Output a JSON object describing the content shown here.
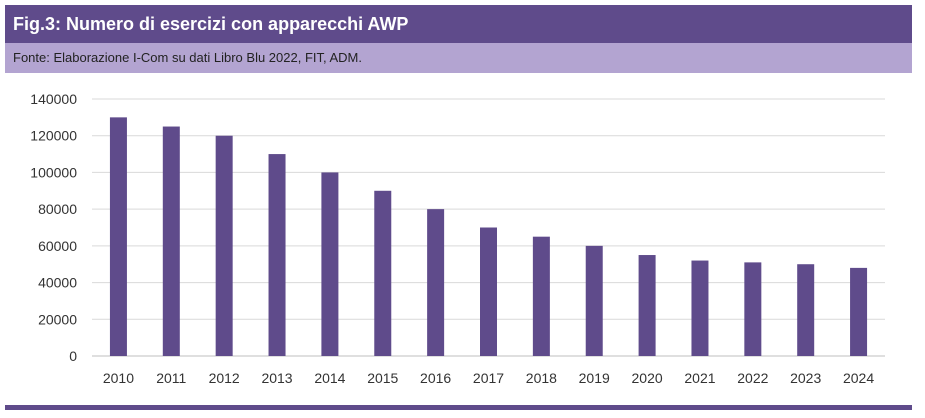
{
  "header": {
    "title": "Fig.3: Numero di esercizi con apparecchi AWP",
    "source": "Fonte: Elaborazione I-Com su dati Libro Blu 2022, FIT, ADM."
  },
  "colors": {
    "title_bg": "#5f4b8b",
    "source_bg": "#b3a4d1",
    "bar": "#5f4b8b",
    "gridline": "#d9d9d9"
  },
  "chart_data": {
    "type": "bar",
    "title": "Numero di esercizi con apparecchi AWP",
    "xlabel": "",
    "ylabel": "",
    "categories": [
      "2010",
      "2011",
      "2012",
      "2013",
      "2014",
      "2015",
      "2016",
      "2017",
      "2018",
      "2019",
      "2020",
      "2021",
      "2022",
      "2023",
      "2024"
    ],
    "values": [
      130000,
      125000,
      120000,
      110000,
      100000,
      90000,
      80000,
      70000,
      65000,
      60000,
      55000,
      52000,
      51000,
      50000,
      48000
    ],
    "ylim": [
      0,
      140000
    ],
    "yticks": [
      "0",
      "20000",
      "40000",
      "60000",
      "80000",
      "100000",
      "120000",
      "140000"
    ],
    "grid": true,
    "legend": "none"
  }
}
